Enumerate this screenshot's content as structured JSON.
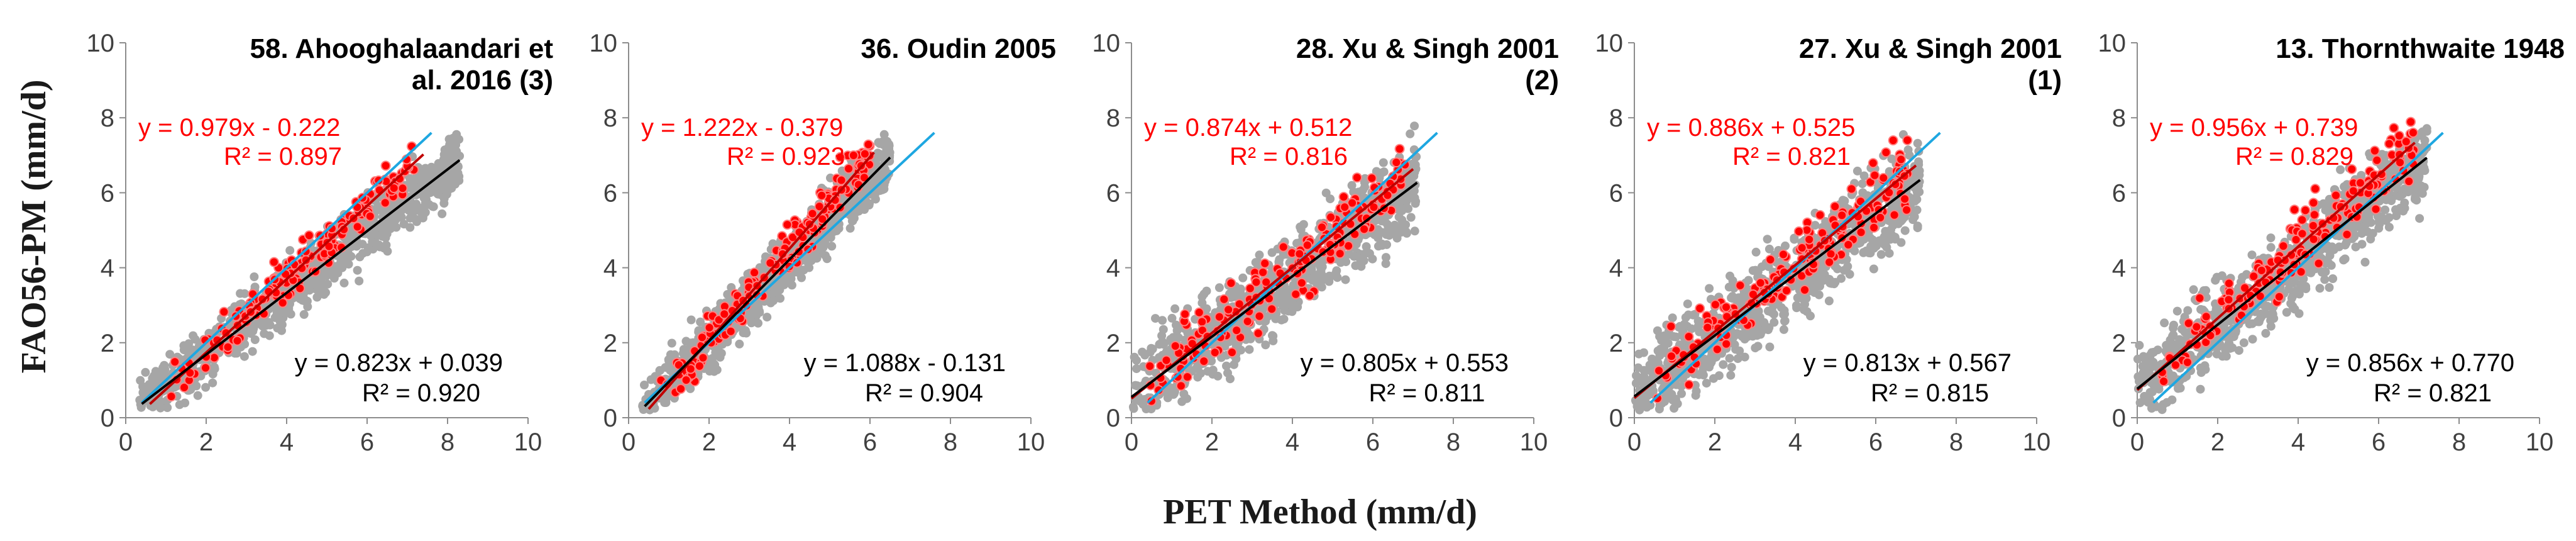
{
  "chart_data": {
    "type": "scatter",
    "shared": {
      "ylabel": "FAO56-PM (mm/d)",
      "xlabel": "PET Method (mm/d)",
      "xlim": [
        0,
        10
      ],
      "ylim": [
        0,
        10
      ],
      "xticks": [
        "0",
        "2",
        "4",
        "6",
        "8",
        "10"
      ],
      "yticks": [
        "0",
        "2",
        "4",
        "6",
        "8",
        "10"
      ],
      "one_to_one_line": {
        "x": [
          0.4,
          7.6
        ],
        "y": [
          0.4,
          7.6
        ],
        "color": "#1ea7e1"
      },
      "colors": {
        "gray_points": "#a6a6a6",
        "red_points": "#ff0000",
        "black_fit": "#000000",
        "red_fit": "#c00000"
      }
    },
    "panels": [
      {
        "title_lines": [
          "58. Ahooghalaandari et",
          "al. 2016 (3)"
        ],
        "red_fit": {
          "equation": "y = 0.979x - 0.222",
          "r2": "R² = 0.897",
          "slope": 0.979,
          "intercept": -0.222,
          "x_range": [
            0.6,
            7.4
          ]
        },
        "black_fit": {
          "equation": "y = 0.823x + 0.039",
          "r2": "R² = 0.920",
          "slope": 0.823,
          "intercept": 0.039,
          "x_range": [
            0.4,
            8.3
          ]
        },
        "gray_cloud": {
          "x_range": [
            0.3,
            8.3
          ],
          "spread": 0.6
        },
        "red_cloud": {
          "x_range": [
            1.0,
            7.2
          ],
          "spread": 0.45
        }
      },
      {
        "title_lines": [
          "36. Oudin 2005"
        ],
        "red_fit": {
          "equation": "y = 1.222x - 0.379",
          "r2": "R² = 0.923",
          "slope": 1.222,
          "intercept": -0.379,
          "x_range": [
            0.5,
            6.1
          ]
        },
        "black_fit": {
          "equation": "y = 1.088x - 0.131",
          "r2": "R² = 0.904",
          "slope": 1.088,
          "intercept": -0.131,
          "x_range": [
            0.4,
            6.5
          ]
        },
        "gray_cloud": {
          "x_range": [
            0.3,
            6.5
          ],
          "spread": 0.6
        },
        "red_cloud": {
          "x_range": [
            0.6,
            6.0
          ],
          "spread": 0.5
        }
      },
      {
        "title_lines": [
          "28. Xu & Singh 2001",
          "(2)"
        ],
        "red_fit": {
          "equation": "y = 0.874x + 0.512",
          "r2": "R² = 0.816",
          "slope": 0.874,
          "intercept": 0.512,
          "x_range": [
            0.0,
            7.0
          ]
        },
        "black_fit": {
          "equation": "y = 0.805x + 0.553",
          "r2": "R² = 0.811",
          "slope": 0.805,
          "intercept": 0.553,
          "x_range": [
            0.0,
            7.1
          ]
        },
        "gray_cloud": {
          "x_range": [
            0.0,
            7.1
          ],
          "spread": 0.9
        },
        "red_cloud": {
          "x_range": [
            0.3,
            6.8
          ],
          "spread": 0.75
        }
      },
      {
        "title_lines": [
          "27. Xu & Singh 2001",
          "(1)"
        ],
        "red_fit": {
          "equation": "y = 0.886x + 0.525",
          "r2": "R² = 0.821",
          "slope": 0.886,
          "intercept": 0.525,
          "x_range": [
            0.0,
            7.0
          ]
        },
        "black_fit": {
          "equation": "y = 0.813x + 0.567",
          "r2": "R² = 0.815",
          "slope": 0.813,
          "intercept": 0.567,
          "x_range": [
            0.0,
            7.1
          ]
        },
        "gray_cloud": {
          "x_range": [
            0.0,
            7.1
          ],
          "spread": 0.9
        },
        "red_cloud": {
          "x_range": [
            0.3,
            6.8
          ],
          "spread": 0.75
        }
      },
      {
        "title_lines": [
          "13. Thornthwaite 1948"
        ],
        "red_fit": {
          "equation": "y = 0.956x + 0.739",
          "r2": "R² = 0.829",
          "slope": 0.956,
          "intercept": 0.739,
          "x_range": [
            0.0,
            6.9
          ]
        },
        "black_fit": {
          "equation": "y = 0.856x + 0.770",
          "r2": "R² = 0.821",
          "slope": 0.856,
          "intercept": 0.77,
          "x_range": [
            0.0,
            7.2
          ]
        },
        "gray_cloud": {
          "x_range": [
            0.0,
            7.2
          ],
          "spread": 0.85
        },
        "red_cloud": {
          "x_range": [
            0.2,
            6.9
          ],
          "spread": 0.7
        }
      }
    ]
  }
}
